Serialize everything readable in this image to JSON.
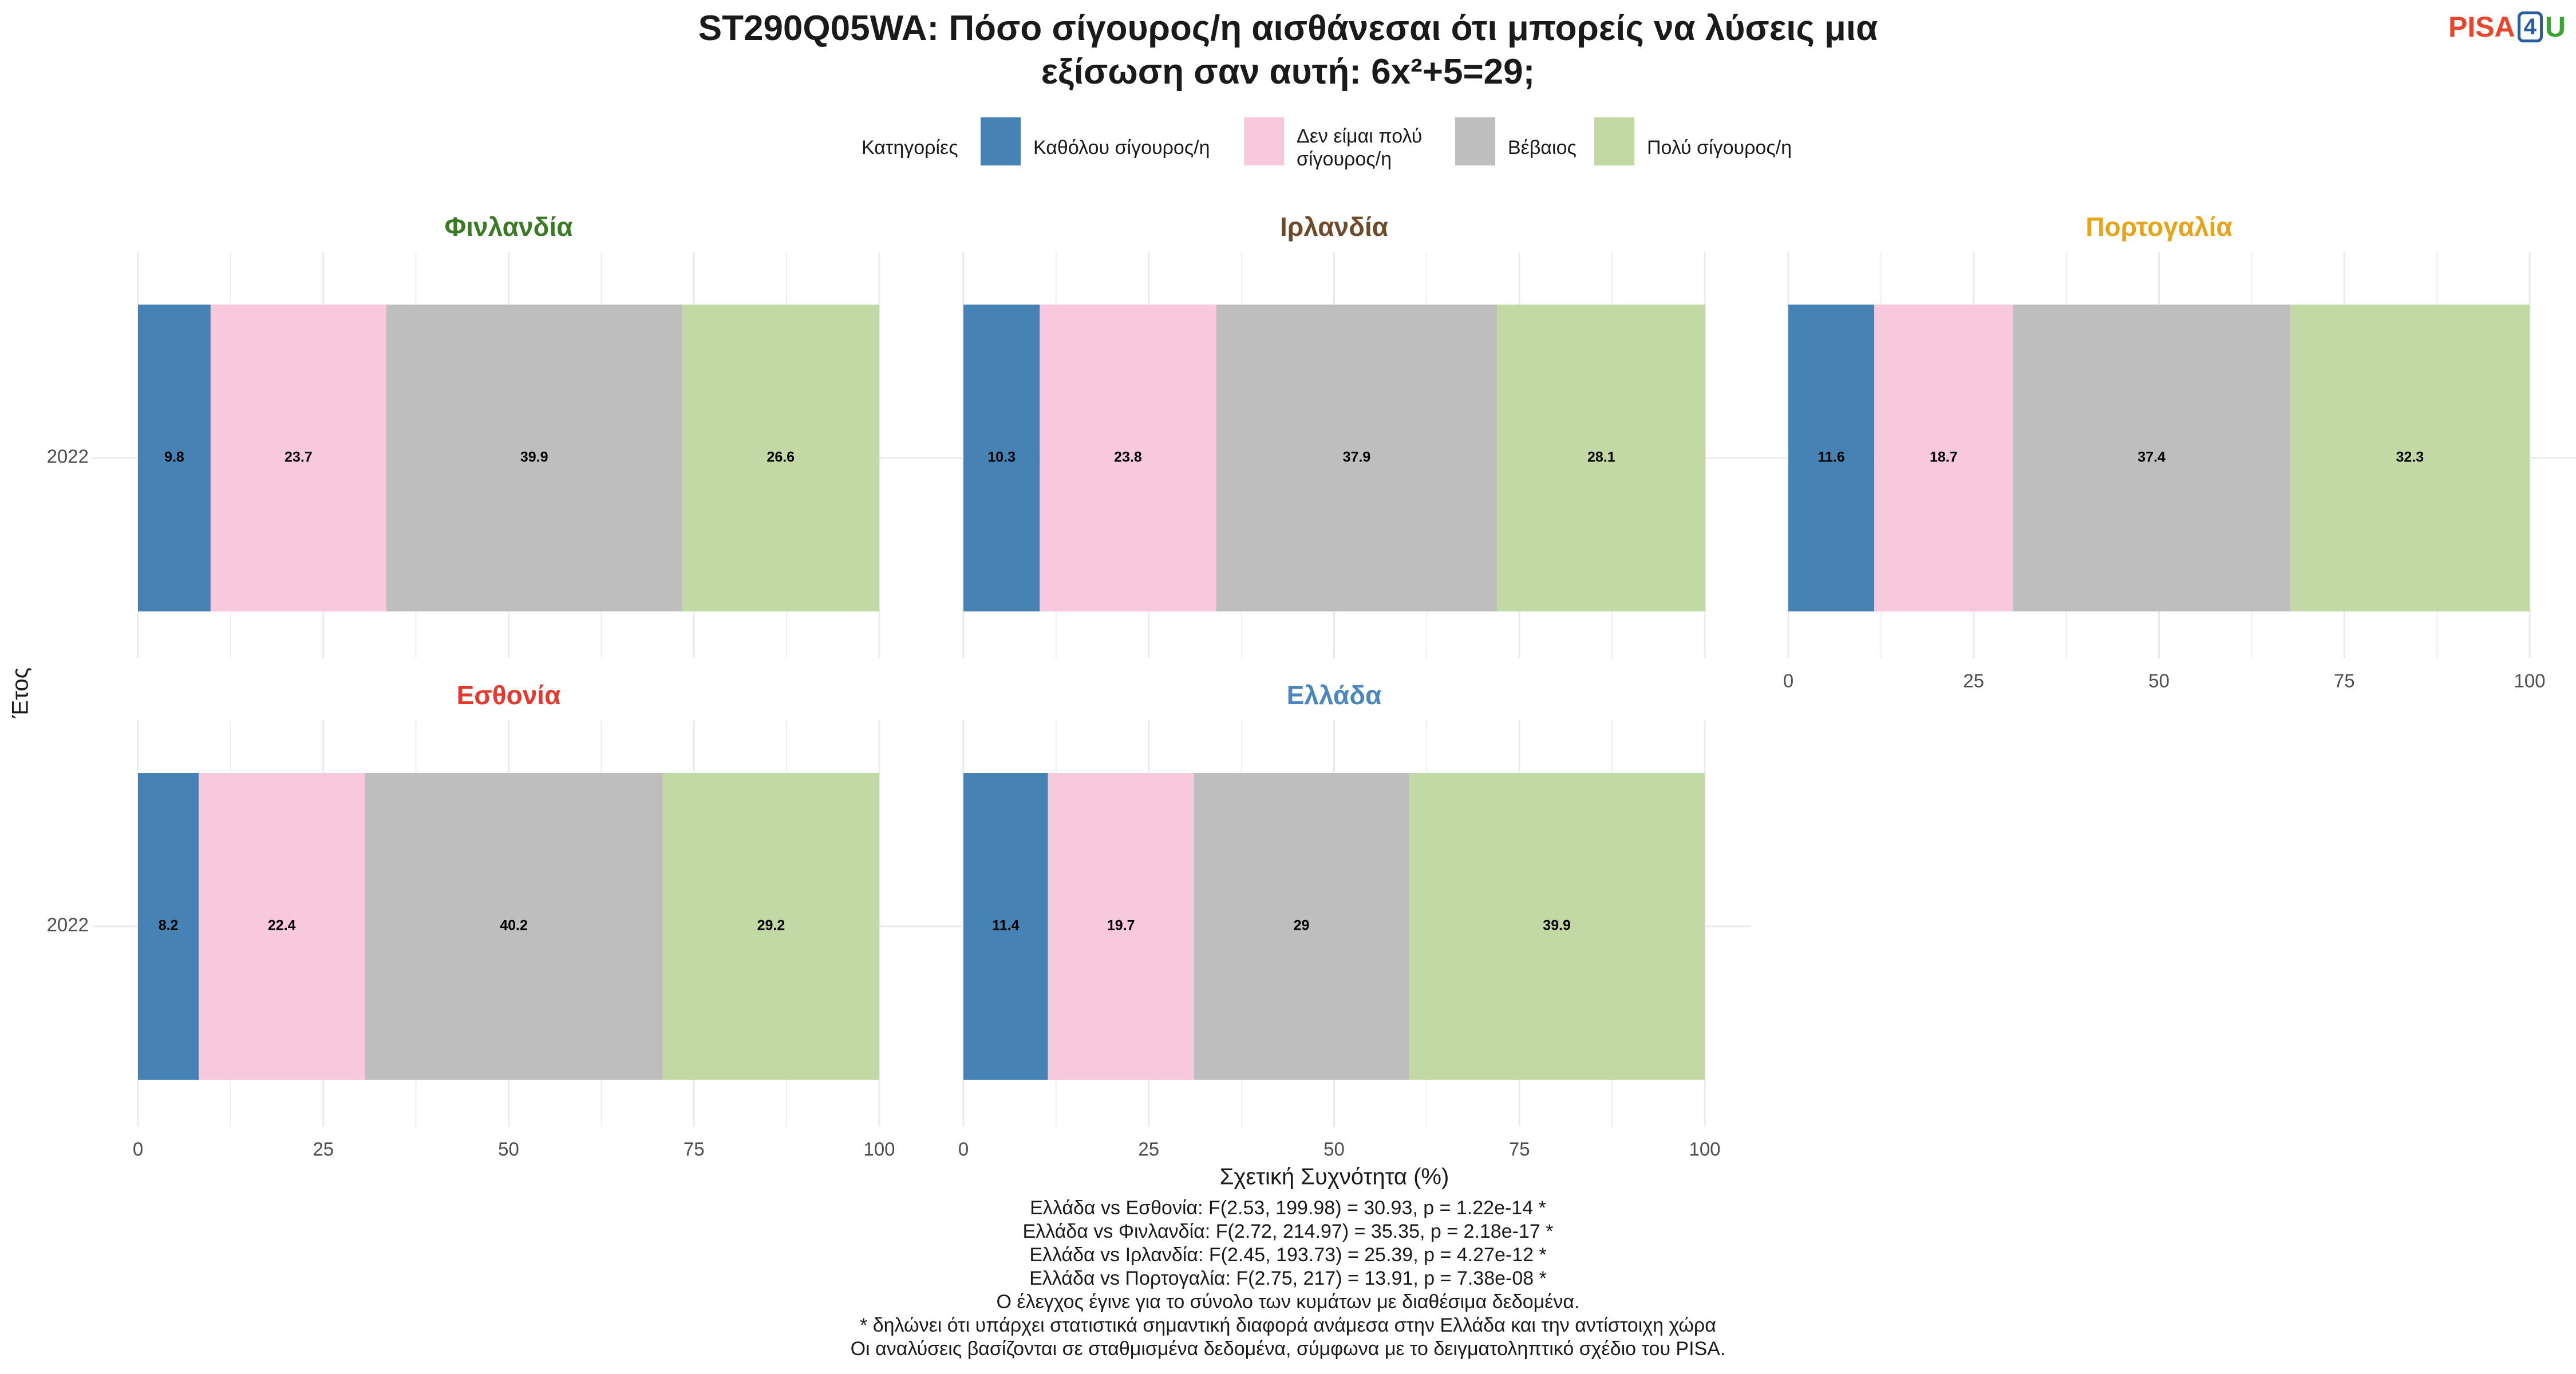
{
  "title_lines": [
    "ST290Q05WA: Πόσο σίγουρος/η αισθάνεσαι ότι μπορείς να λύσεις μια",
    "εξίσωση σαν αυτή: 6x²+5=29;"
  ],
  "logo": {
    "pisa": "PISA",
    "four": "4",
    "u": "U"
  },
  "legend": {
    "title": "Κατηγορίες",
    "items": [
      {
        "lines": [
          "Καθόλου σίγουρος/η"
        ],
        "color": "#4682b4"
      },
      {
        "lines": [
          "Δεν είμαι πολύ",
          "σίγουρος/η"
        ],
        "color": "#f8c8dc"
      },
      {
        "lines": [
          "Βέβαιος"
        ],
        "color": "#bebebe"
      },
      {
        "lines": [
          "Πολύ σίγουρος/η"
        ],
        "color": "#c2d8a5"
      }
    ]
  },
  "chart_data": {
    "type": "bar",
    "orientation": "horizontal-stacked",
    "xlabel": "Σχετική Συχνότητα (%)",
    "ylabel": "Έτος",
    "xlim": [
      0,
      100
    ],
    "xticks": [
      0,
      25,
      50,
      75,
      100
    ],
    "categories": [
      "Καθόλου σίγουρος/η",
      "Δεν είμαι πολύ σίγουρος/η",
      "Βέβαιος",
      "Πολύ σίγουρος/η"
    ],
    "colors": [
      "#4682b4",
      "#f8c8dc",
      "#bebebe",
      "#c2d8a5"
    ],
    "legend_position": "top",
    "grid": true,
    "panels": [
      {
        "country": "Φινλανδία",
        "color": "#3a7a25",
        "year": "2022",
        "values": [
          9.8,
          23.7,
          39.9,
          26.6
        ],
        "labels": [
          "9.8",
          "23.7",
          "39.9",
          "26.6"
        ]
      },
      {
        "country": "Ιρλανδία",
        "color": "#6e4a2a",
        "year": "2022",
        "values": [
          10.3,
          23.8,
          37.9,
          28.1
        ],
        "labels": [
          "10.3",
          "23.8",
          "37.9",
          "28.1"
        ]
      },
      {
        "country": "Πορτογαλία",
        "color": "#e8a317",
        "year": "2022",
        "values": [
          11.6,
          18.7,
          37.4,
          32.3
        ],
        "labels": [
          "11.6",
          "18.7",
          "37.4",
          "32.3"
        ]
      },
      {
        "country": "Εσθονία",
        "color": "#e8382e",
        "year": "2022",
        "values": [
          8.2,
          22.4,
          40.2,
          29.2
        ],
        "labels": [
          "8.2",
          "22.4",
          "40.2",
          "29.2"
        ]
      },
      {
        "country": "Ελλάδα",
        "color": "#4a86c0",
        "year": "2022",
        "values": [
          11.4,
          19.7,
          29,
          39.9
        ],
        "labels": [
          "11.4",
          "19.7",
          "29",
          "39.9"
        ]
      }
    ]
  },
  "footnotes": [
    "Ελλάδα vs Εσθονία: F(2.53, 199.98) = 30.93, p = 1.22e-14 *",
    "Ελλάδα vs Φινλανδία: F(2.72, 214.97) = 35.35, p = 2.18e-17 *",
    "Ελλάδα vs Ιρλανδία: F(2.45, 193.73) = 25.39, p = 4.27e-12 *",
    "Ελλάδα vs Πορτογαλία: F(2.75, 217) = 13.91, p = 7.38e-08 *",
    "Ο έλεγχος έγινε για το σύνολο των κυμάτων με διαθέσιμα δεδομένα.",
    "* δηλώνει ότι υπάρχει στατιστικά σημαντική διαφορά ανάμεσα στην Ελλάδα και την αντίστοιχη χώρα",
    "Οι αναλύσεις βασίζονται σε σταθμισμένα δεδομένα, σύμφωνα με το δειγματοληπτικό σχέδιο του PISA."
  ]
}
